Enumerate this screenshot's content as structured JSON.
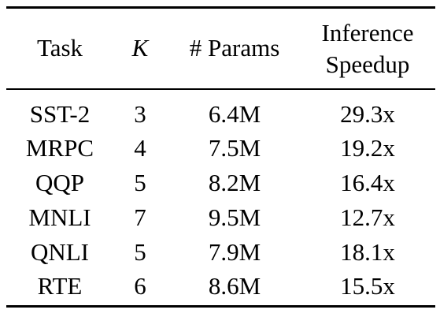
{
  "table": {
    "headers": {
      "task": "Task",
      "k": "K",
      "params": "# Params",
      "speedup_line1": "Inference",
      "speedup_line2": "Speedup"
    },
    "rows": [
      {
        "task": "SST-2",
        "k": "3",
        "params": "6.4M",
        "speedup": "29.3x"
      },
      {
        "task": "MRPC",
        "k": "4",
        "params": "7.5M",
        "speedup": "19.2x"
      },
      {
        "task": "QQP",
        "k": "5",
        "params": "8.2M",
        "speedup": "16.4x"
      },
      {
        "task": "MNLI",
        "k": "7",
        "params": "9.5M",
        "speedup": "12.7x"
      },
      {
        "task": "QNLI",
        "k": "5",
        "params": "7.9M",
        "speedup": "18.1x"
      },
      {
        "task": "RTE",
        "k": "6",
        "params": "8.6M",
        "speedup": "15.5x"
      }
    ]
  }
}
